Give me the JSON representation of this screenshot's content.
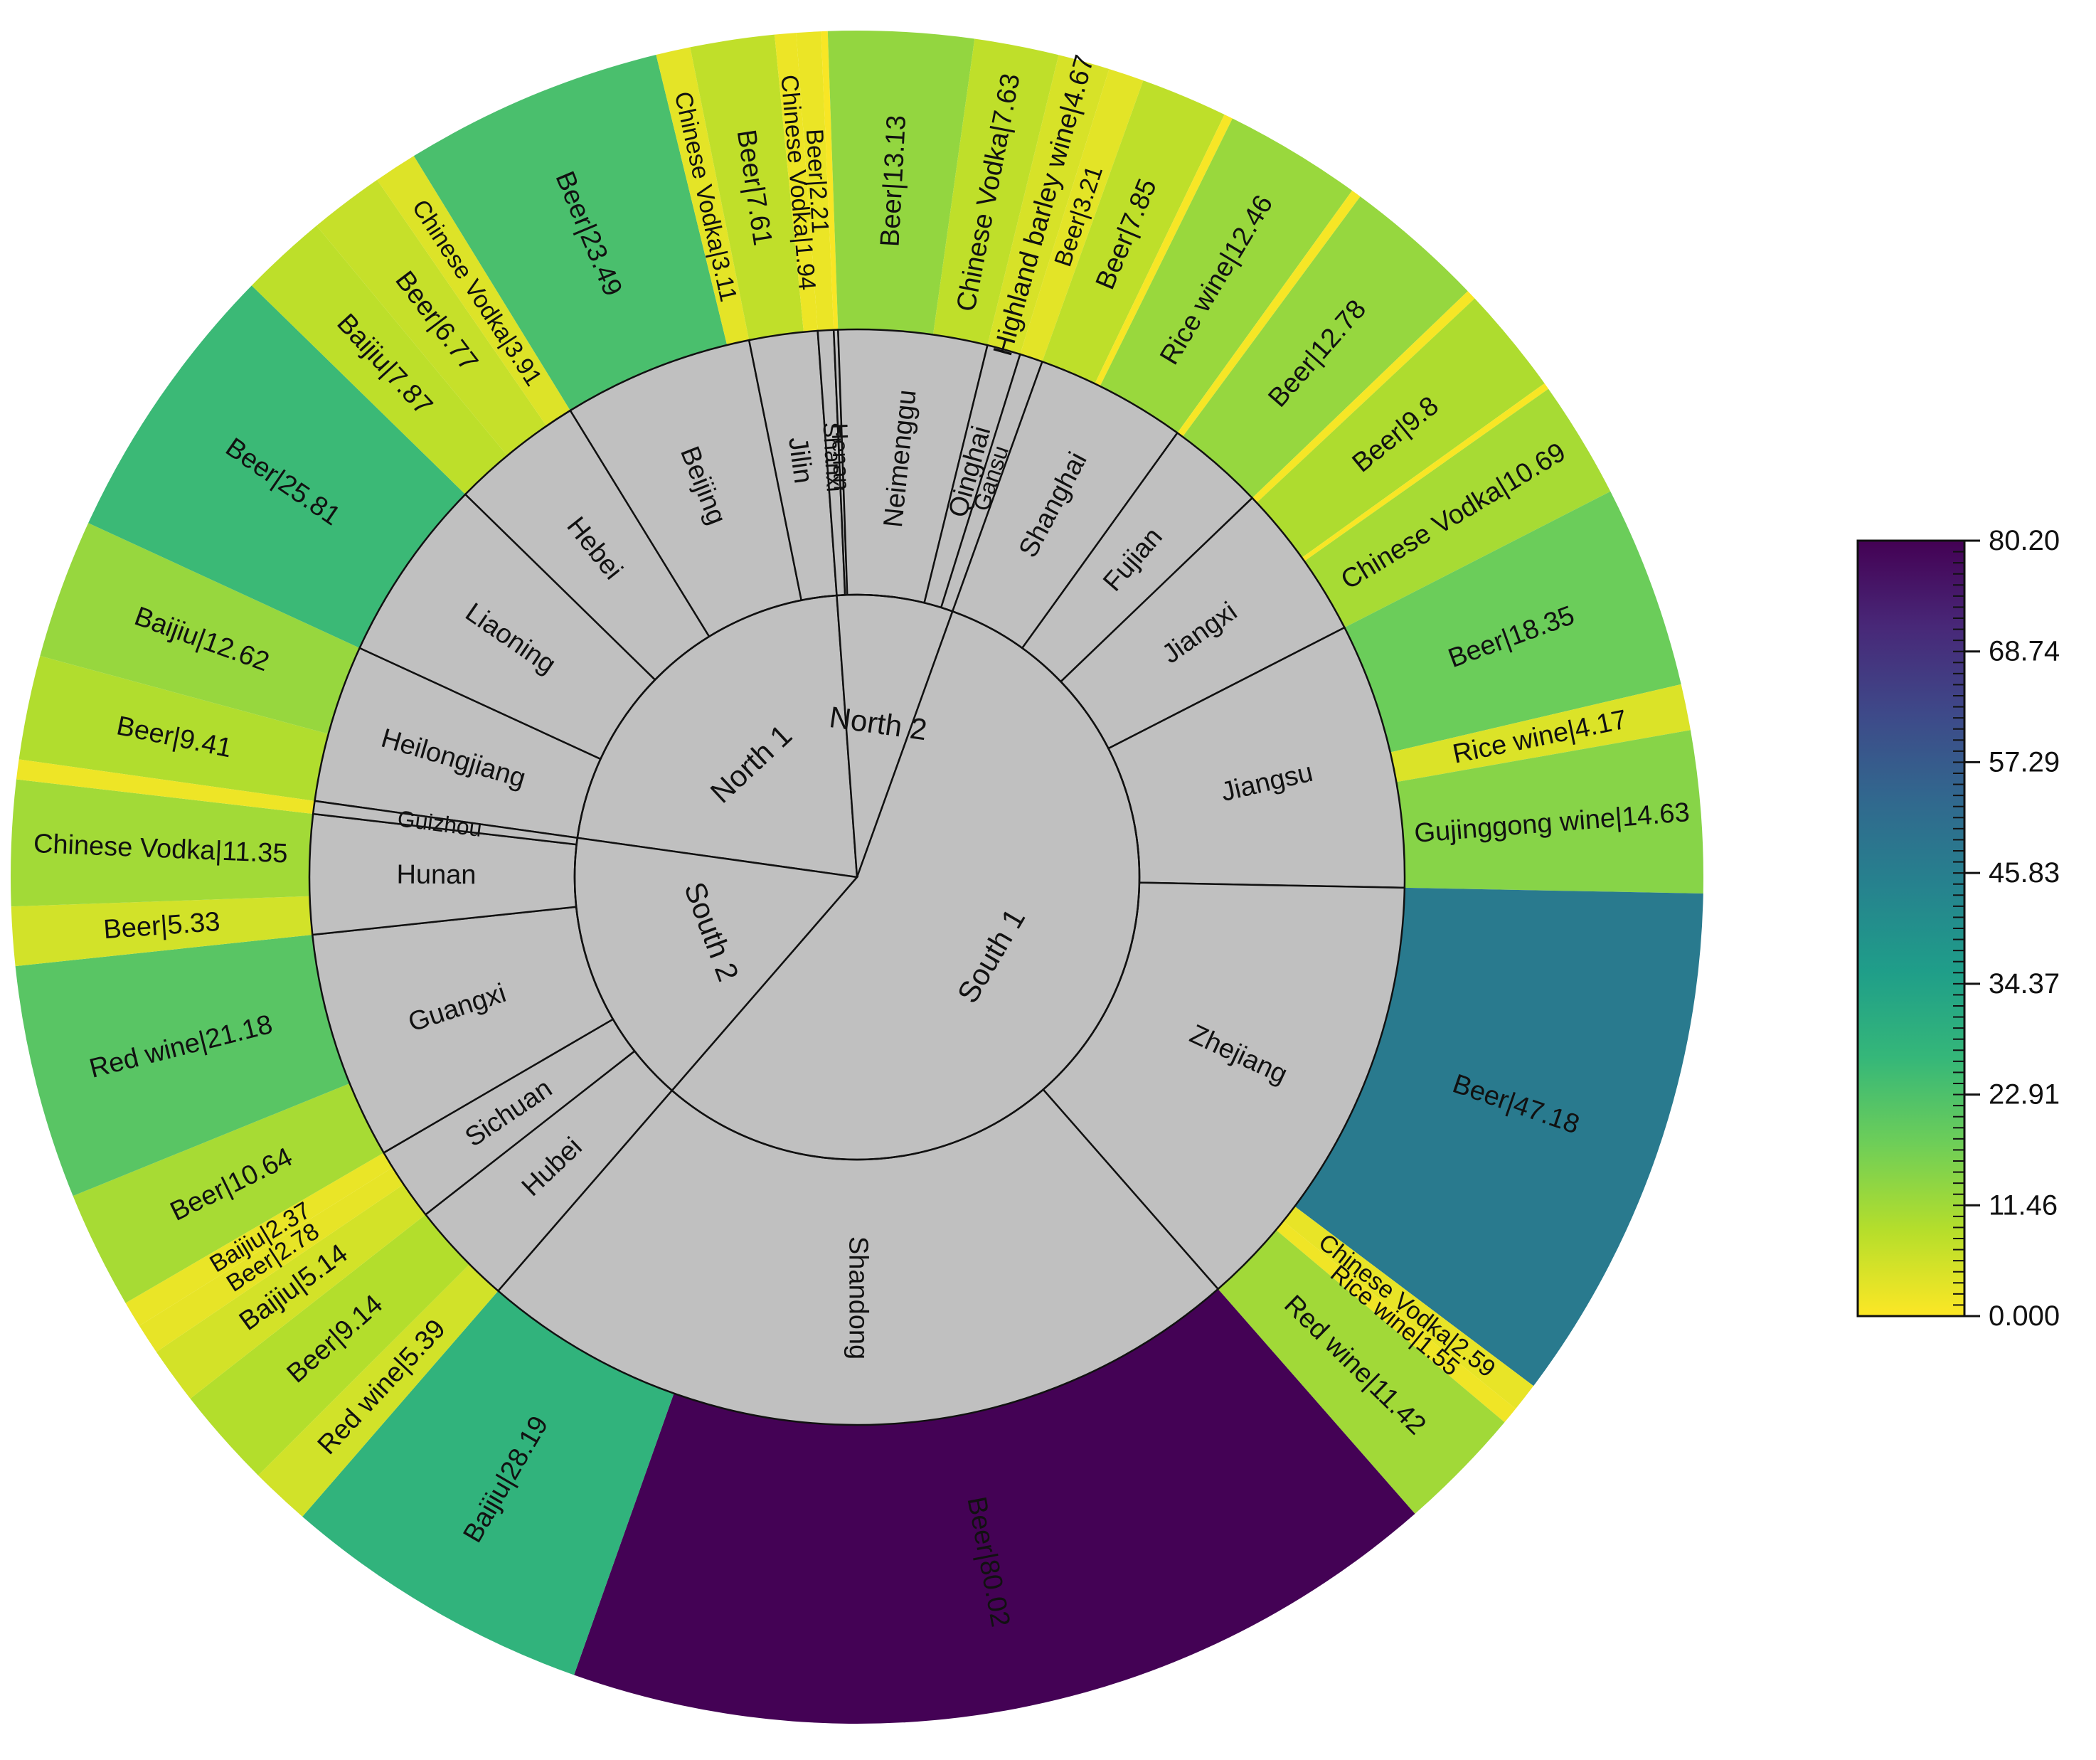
{
  "chart_data": {
    "type": "sunburst",
    "title": "",
    "colorbar": {
      "ticks": [
        "80.20",
        "68.74",
        "57.29",
        "45.83",
        "34.37",
        "22.91",
        "11.46",
        "0.000"
      ],
      "range": [
        0,
        80.2
      ],
      "palette": [
        "#fde725",
        "#b5de2b",
        "#6ece58",
        "#35b779",
        "#1f9e89",
        "#26828e",
        "#31688e",
        "#3e4989",
        "#482878",
        "#440154"
      ]
    },
    "ring_colors": {
      "inner": "#c0c0c0",
      "middle": "#c0c0c0"
    },
    "regions": [
      {
        "name": "North 1",
        "provinces": [
          {
            "name": "Heilongjiang",
            "items": [
              {
                "label": "Beer|9.41",
                "value": 9.41
              },
              {
                "label": "Baijiu|12.62",
                "value": 12.62
              }
            ]
          },
          {
            "name": "Liaoning",
            "items": [
              {
                "label": "Beer|25.81",
                "value": 25.81
              }
            ]
          },
          {
            "name": "Hebei",
            "items": [
              {
                "label": "Baijiu|7.87",
                "value": 7.87
              },
              {
                "label": "Beer|6.77",
                "value": 6.77
              },
              {
                "label": "Chinese Vodka|3.91",
                "value": 3.91
              }
            ]
          },
          {
            "name": "Beijing",
            "items": [
              {
                "label": "Beer|23.49",
                "value": 23.49
              },
              {
                "label": "Chinese Vodka|3.11",
                "value": 3.11
              }
            ]
          },
          {
            "name": "Jilin",
            "items": [
              {
                "label": "Beer|7.61",
                "value": 7.61
              },
              {
                "label": "Chinese Vodka|1.94",
                "value": 1.94
              }
            ]
          }
        ]
      },
      {
        "name": "North 2",
        "provinces": [
          {
            "name": "Shanxi",
            "items": [
              {
                "label": "Beer|2.21",
                "value": 2.21
              }
            ]
          },
          {
            "name": "Henan",
            "items": [
              {
                "label": "",
                "value": 0.6
              }
            ]
          },
          {
            "name": "Neimenggu",
            "items": [
              {
                "label": "Beer|13.13",
                "value": 13.13
              },
              {
                "label": "Chinese Vodka|7.63",
                "value": 7.63
              }
            ]
          },
          {
            "name": "Qinghai",
            "items": [
              {
                "label": "Highland barley wine|4.67",
                "value": 4.67
              }
            ]
          },
          {
            "name": "Gansu",
            "items": [
              {
                "label": "Beer|3.21",
                "value": 3.21
              }
            ]
          }
        ]
      },
      {
        "name": "South 1",
        "provinces": [
          {
            "name": "Shanghai",
            "items": [
              {
                "label": "Beer|7.85",
                "value": 7.85
              },
              {
                "label": "",
                "value": 0.8
              },
              {
                "label": "Rice wine|12.46",
                "value": 12.46
              }
            ]
          },
          {
            "name": "Fujian",
            "items": [
              {
                "label": "",
                "value": 0.9
              },
              {
                "label": "Beer|12.78",
                "value": 12.78
              }
            ]
          },
          {
            "name": "Jiangxi",
            "items": [
              {
                "label": "",
                "value": 0.9
              },
              {
                "label": "Beer|9.8",
                "value": 9.8
              },
              {
                "label": "",
                "value": 0.6
              },
              {
                "label": "Chinese Vodka|10.69",
                "value": 10.69
              }
            ]
          },
          {
            "name": "Jiangsu",
            "items": [
              {
                "label": "Beer|18.35",
                "value": 18.35
              },
              {
                "label": "Rice wine|4.17",
                "value": 4.17
              },
              {
                "label": "Gujinggong wine|14.63",
                "value": 14.63
              }
            ]
          },
          {
            "name": "Zhejiang",
            "items": [
              {
                "label": "Beer|47.18",
                "value": 47.18
              },
              {
                "label": "Chinese Vodka|2.59",
                "value": 2.59
              },
              {
                "label": "Rice wine|1.55",
                "value": 1.55
              },
              {
                "label": "Red wine|11.42",
                "value": 11.42
              }
            ]
          },
          {
            "name": "Shandong",
            "items": [
              {
                "label": "Beer|80.02",
                "value": 80.02
              },
              {
                "label": "Baijiu|28.19",
                "value": 28.19
              }
            ]
          }
        ]
      },
      {
        "name": "South 2",
        "provinces": [
          {
            "name": "Hubei",
            "items": [
              {
                "label": "Red wine|5.39",
                "value": 5.39
              },
              {
                "label": "Beer|9.14",
                "value": 9.14
              }
            ]
          },
          {
            "name": "Sichuan",
            "items": [
              {
                "label": "Baijiu|5.14",
                "value": 5.14
              },
              {
                "label": "Beer|2.78",
                "value": 2.78
              },
              {
                "label": "Baijiu|2.37",
                "value": 2.37
              }
            ]
          },
          {
            "name": "Guangxi",
            "items": [
              {
                "label": "Beer|10.64",
                "value": 10.64
              },
              {
                "label": "Red wine|21.18",
                "value": 21.18
              }
            ]
          },
          {
            "name": "Hunan",
            "items": [
              {
                "label": "Beer|5.33",
                "value": 5.33
              },
              {
                "label": "Chinese Vodka|11.35",
                "value": 11.35
              }
            ]
          },
          {
            "name": "Guizhou",
            "items": [
              {
                "label": "",
                "value": 1.8
              }
            ]
          }
        ]
      }
    ]
  }
}
